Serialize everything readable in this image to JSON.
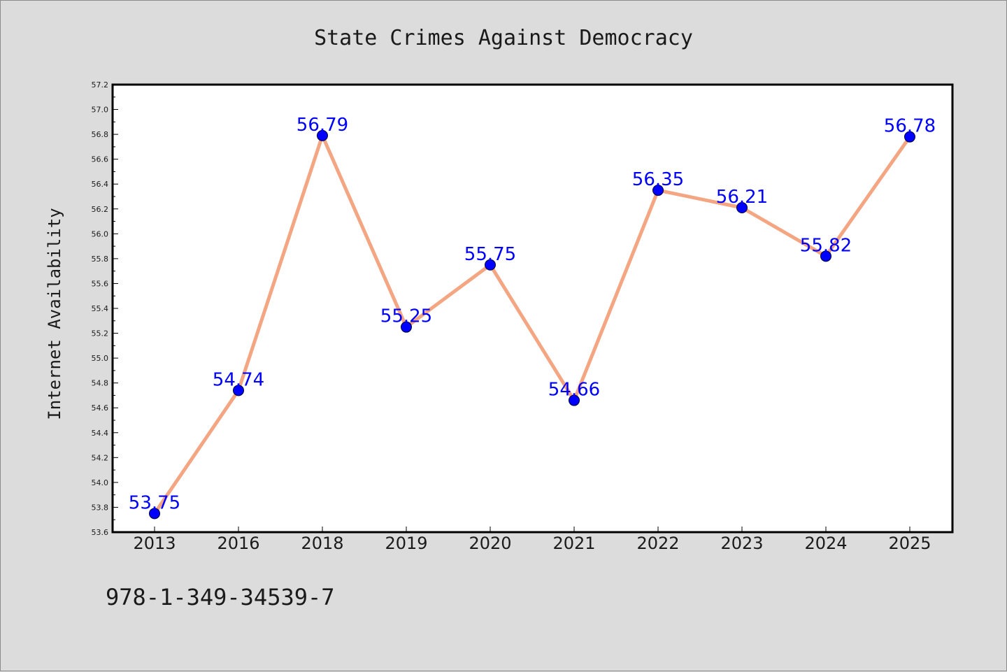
{
  "chart_data": {
    "type": "line",
    "title": "State Crimes Against Democracy",
    "xlabel": "",
    "ylabel": "Internet Availability",
    "categories": [
      "2013",
      "2016",
      "2018",
      "2019",
      "2020",
      "2021",
      "2022",
      "2023",
      "2024",
      "2025"
    ],
    "values": [
      53.75,
      54.74,
      56.79,
      55.25,
      55.75,
      54.66,
      56.35,
      56.21,
      55.82,
      56.78
    ],
    "data_labels": [
      "53.75",
      "54.74",
      "56.79",
      "55.25",
      "55.75",
      "54.66",
      "56.35",
      "56.21",
      "55.82",
      "56.78"
    ],
    "ylim": [
      53.6,
      57.2
    ],
    "yticks": [
      "53.6",
      "53.8",
      "54.0",
      "54.2",
      "54.4",
      "54.6",
      "54.8",
      "55.0",
      "55.2",
      "55.4",
      "55.6",
      "55.8",
      "56.0",
      "56.2",
      "56.4",
      "56.6",
      "56.8",
      "57.0",
      "57.2"
    ],
    "grid": false,
    "colors": {
      "line": "#f4a582",
      "marker": "#0000ff",
      "data_label": "#0000ff",
      "background": "#dcdcdc",
      "plot_background": "#ffffff"
    }
  },
  "footer_text": "978-1-349-34539-7"
}
